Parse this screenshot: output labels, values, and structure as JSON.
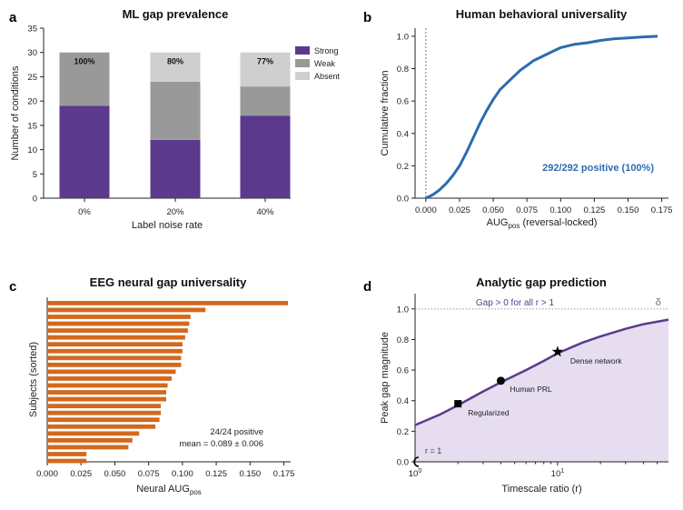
{
  "chart_data": [
    {
      "panel": "a",
      "type": "bar",
      "title": "ML gap prevalence",
      "xlabel": "Label noise rate",
      "ylabel": "Number of conditions",
      "categories": [
        "0%",
        "20%",
        "40%"
      ],
      "ylim": [
        0,
        35
      ],
      "yticks": [
        "0",
        "5",
        "10",
        "15",
        "20",
        "25",
        "30",
        "35"
      ],
      "series": [
        {
          "name": "Strong",
          "color": "#5b3a8e",
          "values": [
            19,
            12,
            17
          ]
        },
        {
          "name": "Weak",
          "color": "#999999",
          "values": [
            11,
            12,
            6
          ]
        },
        {
          "name": "Absent",
          "color": "#cfcfcf",
          "values": [
            0,
            6,
            7
          ]
        }
      ],
      "bar_labels": [
        "100%",
        "80%",
        "77%"
      ],
      "legend": {
        "position": "top-right",
        "entries": [
          "Strong",
          "Weak",
          "Absent"
        ]
      }
    },
    {
      "panel": "b",
      "type": "line",
      "title": "Human behavioral universality",
      "xlabel": "AUG",
      "xlabel_sub": "pos",
      "xlabel_suffix": " (reversal-locked)",
      "ylabel": "Cumulative fraction",
      "xlim": [
        -0.008,
        0.18
      ],
      "ylim": [
        0,
        1.05
      ],
      "xticks": [
        "0.000",
        "0.025",
        "0.050",
        "0.075",
        "0.100",
        "0.125",
        "0.150",
        "0.175"
      ],
      "yticks": [
        "0.0",
        "0.2",
        "0.4",
        "0.6",
        "0.8",
        "1.0"
      ],
      "color": "#2b6cb0",
      "x": [
        0.0,
        0.005,
        0.01,
        0.015,
        0.02,
        0.025,
        0.03,
        0.035,
        0.04,
        0.045,
        0.05,
        0.055,
        0.06,
        0.065,
        0.07,
        0.075,
        0.08,
        0.085,
        0.09,
        0.095,
        0.1,
        0.11,
        0.12,
        0.13,
        0.14,
        0.15,
        0.16,
        0.172
      ],
      "y": [
        0.0,
        0.02,
        0.05,
        0.09,
        0.14,
        0.2,
        0.28,
        0.37,
        0.46,
        0.54,
        0.61,
        0.67,
        0.71,
        0.75,
        0.79,
        0.82,
        0.85,
        0.87,
        0.89,
        0.91,
        0.93,
        0.95,
        0.96,
        0.975,
        0.985,
        0.99,
        0.995,
        1.0
      ],
      "vline_x": 0.0,
      "annotation": "292/292 positive (100%)"
    },
    {
      "panel": "c",
      "type": "bar",
      "orientation": "horizontal",
      "title": "EEG neural gap universality",
      "xlabel": "Neural AUG",
      "xlabel_sub": "pos",
      "ylabel": "Subjects (sorted)",
      "xlim": [
        0,
        0.18
      ],
      "xticks": [
        "0.000",
        "0.025",
        "0.050",
        "0.075",
        "0.100",
        "0.125",
        "0.150",
        "0.175"
      ],
      "color": "#d2691e",
      "values": [
        0.178,
        0.117,
        0.106,
        0.105,
        0.104,
        0.102,
        0.1,
        0.1,
        0.099,
        0.099,
        0.095,
        0.092,
        0.089,
        0.088,
        0.088,
        0.084,
        0.084,
        0.083,
        0.08,
        0.068,
        0.063,
        0.06,
        0.029,
        0.029
      ],
      "annotation_line1": "24/24 positive",
      "annotation_line2": "mean = 0.089 ± 0.006"
    },
    {
      "panel": "d",
      "type": "line",
      "title": "Analytic gap prediction",
      "xlabel": "Timescale ratio (r)",
      "ylabel": "Peak gap magnitude",
      "xscale": "log",
      "xlim": [
        1,
        60
      ],
      "ylim": [
        0,
        1.1
      ],
      "xticks": [
        {
          "base": "10",
          "exp": "0"
        },
        {
          "base": "10",
          "exp": "1"
        }
      ],
      "yticks": [
        "0.0",
        "0.2",
        "0.4",
        "0.6",
        "0.8",
        "1.0"
      ],
      "color": "#5b3a8e",
      "fill_color": "#e6ddf0",
      "x": [
        1,
        1.5,
        2,
        3,
        4,
        6,
        8,
        10,
        15,
        20,
        30,
        40,
        60
      ],
      "y": [
        0.24,
        0.31,
        0.37,
        0.46,
        0.52,
        0.6,
        0.66,
        0.71,
        0.78,
        0.82,
        0.87,
        0.9,
        0.93
      ],
      "hline_y": 1.0,
      "hline_label": "δ",
      "hline_text": "Gap > 0 for all r > 1",
      "r1_label": "r = 1",
      "markers": [
        {
          "label": "Regularized",
          "x": 2,
          "y": 0.38,
          "symbol": "square"
        },
        {
          "label": "Human PRL",
          "x": 4,
          "y": 0.53,
          "symbol": "circle"
        },
        {
          "label": "Dense network",
          "x": 10,
          "y": 0.72,
          "symbol": "star"
        }
      ]
    }
  ],
  "panel_letters": [
    "a",
    "b",
    "c",
    "d"
  ]
}
